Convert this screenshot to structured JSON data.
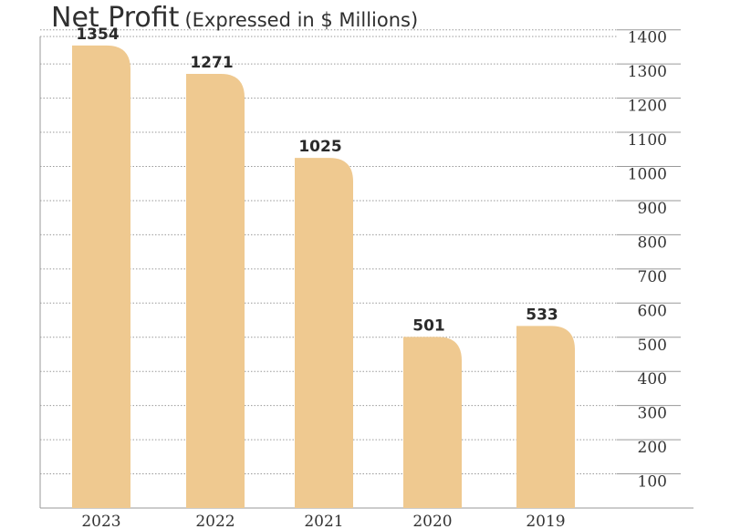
{
  "header": {
    "title": "Net Profit",
    "subtitle": "(Expressed in $ Millions)"
  },
  "colors": {
    "bar": "#efc990",
    "grid": "#9a9a9a",
    "text": "#333333"
  },
  "chart_data": {
    "type": "bar",
    "title": "Net Profit",
    "subtitle": "(Expressed in $ Millions)",
    "categories": [
      "2023",
      "2022",
      "2021",
      "2020",
      "2019"
    ],
    "values": [
      1354,
      1271,
      1025,
      501,
      533
    ],
    "data_labels": [
      "1354",
      "1271",
      "1025",
      "501",
      "533"
    ],
    "ylim": [
      0,
      1400
    ],
    "yticks": [
      100,
      200,
      300,
      400,
      500,
      600,
      700,
      800,
      900,
      1000,
      1100,
      1200,
      1300,
      1400
    ],
    "ytick_position": "right",
    "grid": true,
    "grid_style": "dotted"
  }
}
